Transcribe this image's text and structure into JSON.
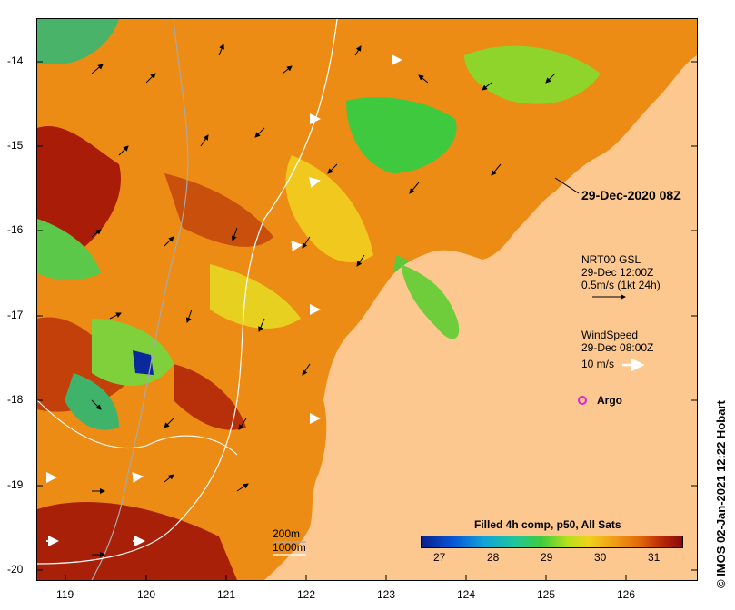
{
  "map": {
    "date_stamp": "29-Dec-2020 08Z",
    "current_legend": {
      "line1": "NRT00 GSL",
      "line2": "29-Dec 12:00Z",
      "line3": "0.5m/s (1kt 24h)"
    },
    "wind_legend": {
      "line1": "WindSpeed",
      "line2": "29-Dec 08:00Z",
      "line3": "10 m/s"
    },
    "argo_label": "Argo",
    "depth_legend": [
      "200m",
      "1000m"
    ],
    "colorbar_title": "Filled 4h comp, p50, All Sats",
    "colorbar_ticks": [
      "27",
      "28",
      "29",
      "30",
      "31"
    ],
    "credit": "© IMOS 02-Jan-2021 12:22 Hobart",
    "y_ticks": [
      "-14",
      "-15",
      "-16",
      "-17",
      "-18",
      "-19",
      "-20"
    ],
    "x_ticks": [
      "119",
      "120",
      "121",
      "122",
      "123",
      "124",
      "125",
      "126"
    ],
    "colors": {
      "land": "#fcc88f",
      "warm_sst": "#f08a12",
      "hot_sst": "#b02008",
      "cool_sst": "#3ec93e",
      "argo": "#e020e0"
    }
  }
}
